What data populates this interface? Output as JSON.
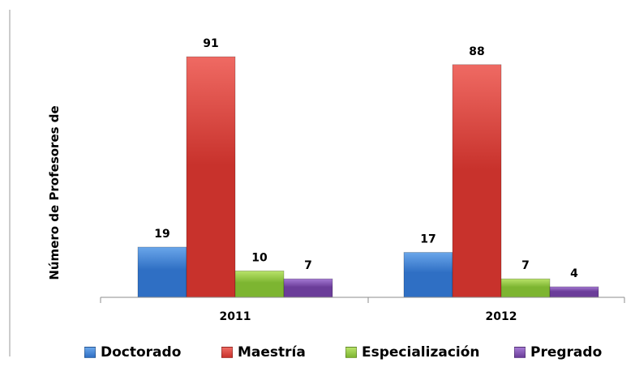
{
  "chart_data": {
    "type": "bar",
    "title": "",
    "xlabel": "",
    "ylabel": "Número de Profesores de",
    "categories": [
      "2011",
      "2012"
    ],
    "series": [
      {
        "name": "Doctorado",
        "values": [
          19,
          17
        ],
        "color": "#2f6fc4",
        "color_light": "#6aa6ea"
      },
      {
        "name": "Maestría",
        "values": [
          91,
          88
        ],
        "color": "#c8322c",
        "color_light": "#ef6a63"
      },
      {
        "name": "Especialización",
        "values": [
          10,
          7
        ],
        "color": "#7db531",
        "color_light": "#b9e36a"
      },
      {
        "name": "Pregrado",
        "values": [
          7,
          4
        ],
        "color": "#6b3d99",
        "color_light": "#a57ad4"
      }
    ],
    "ylim": [
      0,
      100
    ],
    "grid": false,
    "legend_position": "bottom"
  }
}
